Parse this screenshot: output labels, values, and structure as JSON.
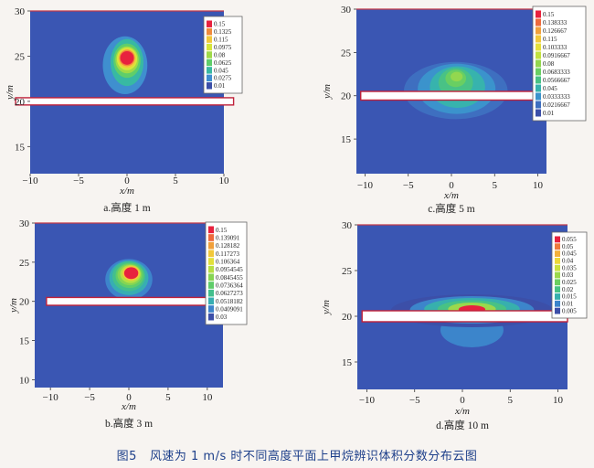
{
  "figure": {
    "caption_label": "图5",
    "caption_text": "风速为 1 m/s 时不同高度平面上甲烷辨识体积分数分布云图"
  },
  "chart_data": [
    {
      "type": "heatmap",
      "panel": "a",
      "subcaption": "a.高度 1 m",
      "xlabel": "x/m",
      "ylabel": "y/m",
      "xlim": [
        -10,
        10
      ],
      "ylim": [
        12,
        30
      ],
      "xticks": [
        -10,
        -5,
        0,
        5,
        10
      ],
      "yticks": [
        15,
        20,
        25,
        30
      ],
      "legend": [
        "0.15",
        "0.1325",
        "0.115",
        "0.0975",
        "0.08",
        "0.0625",
        "0.045",
        "0.0275",
        "0.01"
      ],
      "legend_colors": [
        "#e8213e",
        "#f08a3c",
        "#f2c83a",
        "#d6e63a",
        "#9fda48",
        "#5fce6a",
        "#38b9a2",
        "#3f8fcf",
        "#3c4fa8"
      ],
      "obstacle": {
        "x": [
          -11.5,
          11
        ],
        "y": [
          19.6,
          20.4
        ]
      },
      "plume": [
        {
          "level": 0.0275,
          "cx": -0.2,
          "cy": 24.0,
          "rx": 2.3,
          "ry": 3.2
        },
        {
          "level": 0.045,
          "cx": 0.0,
          "cy": 24.3,
          "rx": 1.7,
          "ry": 2.6
        },
        {
          "level": 0.0625,
          "cx": 0.0,
          "cy": 24.5,
          "rx": 1.4,
          "ry": 1.9
        },
        {
          "level": 0.08,
          "cx": 0.0,
          "cy": 24.6,
          "rx": 1.2,
          "ry": 1.5
        },
        {
          "level": 0.0975,
          "cx": 0.0,
          "cy": 24.7,
          "rx": 1.05,
          "ry": 1.25
        },
        {
          "level": 0.115,
          "cx": 0.0,
          "cy": 24.75,
          "rx": 0.9,
          "ry": 1.05
        },
        {
          "level": 0.1325,
          "cx": 0.0,
          "cy": 24.8,
          "rx": 0.8,
          "ry": 0.9
        },
        {
          "level": 0.15,
          "cx": 0.0,
          "cy": 24.8,
          "rx": 0.7,
          "ry": 0.75
        }
      ]
    },
    {
      "type": "heatmap",
      "panel": "c",
      "subcaption": "c.高度 5 m",
      "xlabel": "x/m",
      "ylabel": "y/m",
      "xlim": [
        -11,
        11
      ],
      "ylim": [
        11,
        30
      ],
      "xticks": [
        -10,
        -5,
        0,
        5,
        10
      ],
      "yticks": [
        15,
        20,
        25,
        30
      ],
      "legend": [
        "0.15",
        "0.138333",
        "0.126667",
        "0.115",
        "0.103333",
        "0.0916667",
        "0.08",
        "0.0683333",
        "0.0566667",
        "0.045",
        "0.0333333",
        "0.0216667",
        "0.01"
      ],
      "legend_colors": [
        "#e8213e",
        "#ee6a3d",
        "#f1a03b",
        "#f2c83a",
        "#e6e03a",
        "#c2e23f",
        "#93d74f",
        "#69cf62",
        "#49c285",
        "#37b3ad",
        "#3b93cc",
        "#3e6fc0",
        "#3c4fa8"
      ],
      "obstacle": {
        "x": [
          -10.5,
          10
        ],
        "y": [
          19.5,
          20.5
        ]
      },
      "plume": [
        {
          "level": 0.0216667,
          "cx": 0.5,
          "cy": 20.6,
          "rx": 6.0,
          "ry": 3.3
        },
        {
          "level": 0.0333333,
          "cx": 0.6,
          "cy": 20.8,
          "rx": 4.5,
          "ry": 2.9
        },
        {
          "level": 0.045,
          "cx": 0.7,
          "cy": 21.0,
          "rx": 3.2,
          "ry": 2.4
        },
        {
          "level": 0.0566667,
          "cx": 0.5,
          "cy": 21.5,
          "rx": 2.0,
          "ry": 1.7
        },
        {
          "level": 0.0683333,
          "cx": 0.5,
          "cy": 22.0,
          "rx": 1.2,
          "ry": 1.0
        },
        {
          "level": 0.08,
          "cx": 0.6,
          "cy": 22.2,
          "rx": 0.7,
          "ry": 0.55
        }
      ]
    },
    {
      "type": "heatmap",
      "panel": "b",
      "subcaption": "b.高度 3 m",
      "xlabel": "x/m",
      "ylabel": "y/m",
      "xlim": [
        -12,
        12
      ],
      "ylim": [
        9,
        30
      ],
      "xticks": [
        -10,
        -5,
        0,
        5,
        10
      ],
      "yticks": [
        10,
        15,
        20,
        25,
        30
      ],
      "legend": [
        "0.15",
        "0.139091",
        "0.128182",
        "0.117273",
        "0.106364",
        "0.0954545",
        "0.0845455",
        "0.0736364",
        "0.0627273",
        "0.0518182",
        "0.0409091",
        "0.03"
      ],
      "legend_colors": [
        "#e8213e",
        "#ee6a3d",
        "#f1a03b",
        "#f2c83a",
        "#e2e03a",
        "#b7df43",
        "#86d553",
        "#5fcd6a",
        "#43bf8d",
        "#37aeb2",
        "#3d84cb",
        "#3c4fa8"
      ],
      "obstacle": {
        "x": [
          -10.5,
          10.5
        ],
        "y": [
          19.5,
          20.5
        ]
      },
      "plume": [
        {
          "level": 0.0409091,
          "cx": 0.0,
          "cy": 22.8,
          "rx": 3.0,
          "ry": 2.6
        },
        {
          "level": 0.0518182,
          "cx": 0.0,
          "cy": 23.0,
          "rx": 2.5,
          "ry": 2.2
        },
        {
          "level": 0.0627273,
          "cx": 0.0,
          "cy": 23.2,
          "rx": 2.1,
          "ry": 1.9
        },
        {
          "level": 0.0736364,
          "cx": 0.1,
          "cy": 23.3,
          "rx": 1.8,
          "ry": 1.6
        },
        {
          "level": 0.0845455,
          "cx": 0.1,
          "cy": 23.4,
          "rx": 1.55,
          "ry": 1.35
        },
        {
          "level": 0.0954545,
          "cx": 0.2,
          "cy": 23.5,
          "rx": 1.3,
          "ry": 1.15
        },
        {
          "level": 0.117273,
          "cx": 0.3,
          "cy": 23.6,
          "rx": 1.1,
          "ry": 0.95
        },
        {
          "level": 0.15,
          "cx": 0.3,
          "cy": 23.6,
          "rx": 0.9,
          "ry": 0.75
        }
      ]
    },
    {
      "type": "heatmap",
      "panel": "d",
      "subcaption": "d.高度 10 m",
      "xlabel": "x/m",
      "ylabel": "y/m",
      "xlim": [
        -11,
        11
      ],
      "ylim": [
        12,
        30
      ],
      "xticks": [
        -10,
        -5,
        0,
        5,
        10
      ],
      "yticks": [
        15,
        20,
        25,
        30
      ],
      "legend": [
        "0.055",
        "0.05",
        "0.045",
        "0.04",
        "0.035",
        "0.03",
        "0.025",
        "0.02",
        "0.015",
        "0.01",
        "0.005"
      ],
      "legend_colors": [
        "#e8213e",
        "#ef7a3c",
        "#f2b03b",
        "#ecd83a",
        "#cbe13f",
        "#9bd84c",
        "#6bcf60",
        "#48c284",
        "#37b0ad",
        "#3c85cb",
        "#3c4fa8"
      ],
      "obstacle": {
        "x": [
          -10.5,
          11
        ],
        "y": [
          19.4,
          20.6
        ]
      },
      "lower_lobe": {
        "level": 0.01,
        "cx": 1.0,
        "cy": 18.5,
        "rx": 3.3,
        "ry": 1.9
      },
      "plume": [
        {
          "level": 0.005,
          "cx": 1.0,
          "cy": 20.6,
          "rx": 8.5,
          "ry": 1.8
        },
        {
          "level": 0.01,
          "cx": 1.0,
          "cy": 20.7,
          "rx": 6.5,
          "ry": 1.5
        },
        {
          "level": 0.015,
          "cx": 1.0,
          "cy": 20.8,
          "rx": 5.0,
          "ry": 1.2
        },
        {
          "level": 0.02,
          "cx": 1.0,
          "cy": 20.8,
          "rx": 3.6,
          "ry": 0.95
        },
        {
          "level": 0.03,
          "cx": 1.0,
          "cy": 20.8,
          "rx": 2.5,
          "ry": 0.7
        },
        {
          "level": 0.055,
          "cx": 1.0,
          "cy": 20.75,
          "rx": 1.4,
          "ry": 0.45
        }
      ]
    }
  ]
}
